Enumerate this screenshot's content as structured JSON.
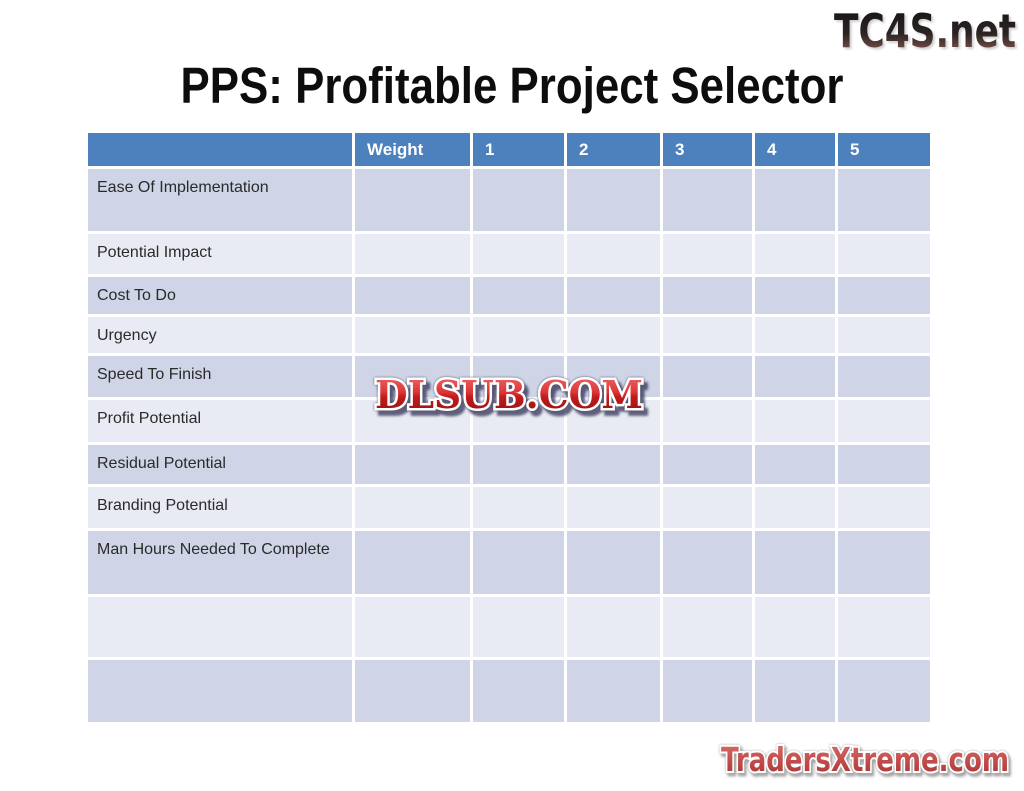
{
  "title": "PPS: Profitable Project Selector",
  "watermarks": {
    "site_logo": "TC4S.net",
    "center_overlay": "DLSUB.COM",
    "footer_brand": "TradersXtreme.com"
  },
  "table": {
    "columns": [
      "",
      "Weight",
      "1",
      "2",
      "3",
      "4",
      "5"
    ],
    "rows": [
      {
        "label": "Ease Of Implementation"
      },
      {
        "label": "Potential Impact"
      },
      {
        "label": "Cost To Do"
      },
      {
        "label": "Urgency"
      },
      {
        "label": "Speed To Finish"
      },
      {
        "label": "Profit Potential"
      },
      {
        "label": "Residual Potential"
      },
      {
        "label": "Branding Potential"
      },
      {
        "label": "Man Hours Needed To Complete"
      },
      {
        "label": ""
      },
      {
        "label": ""
      }
    ]
  },
  "colors": {
    "header_bg": "#4D81BD",
    "band_dark": "#CFD5E7",
    "band_light": "#E9EBF4",
    "gridline": "#FFFFFF",
    "title_text": "#0D0D0D",
    "watermark_red_light": "#EF6565",
    "watermark_red_dark": "#A31414",
    "logo_dark": "#161616",
    "logo_fade": "#97625B"
  }
}
